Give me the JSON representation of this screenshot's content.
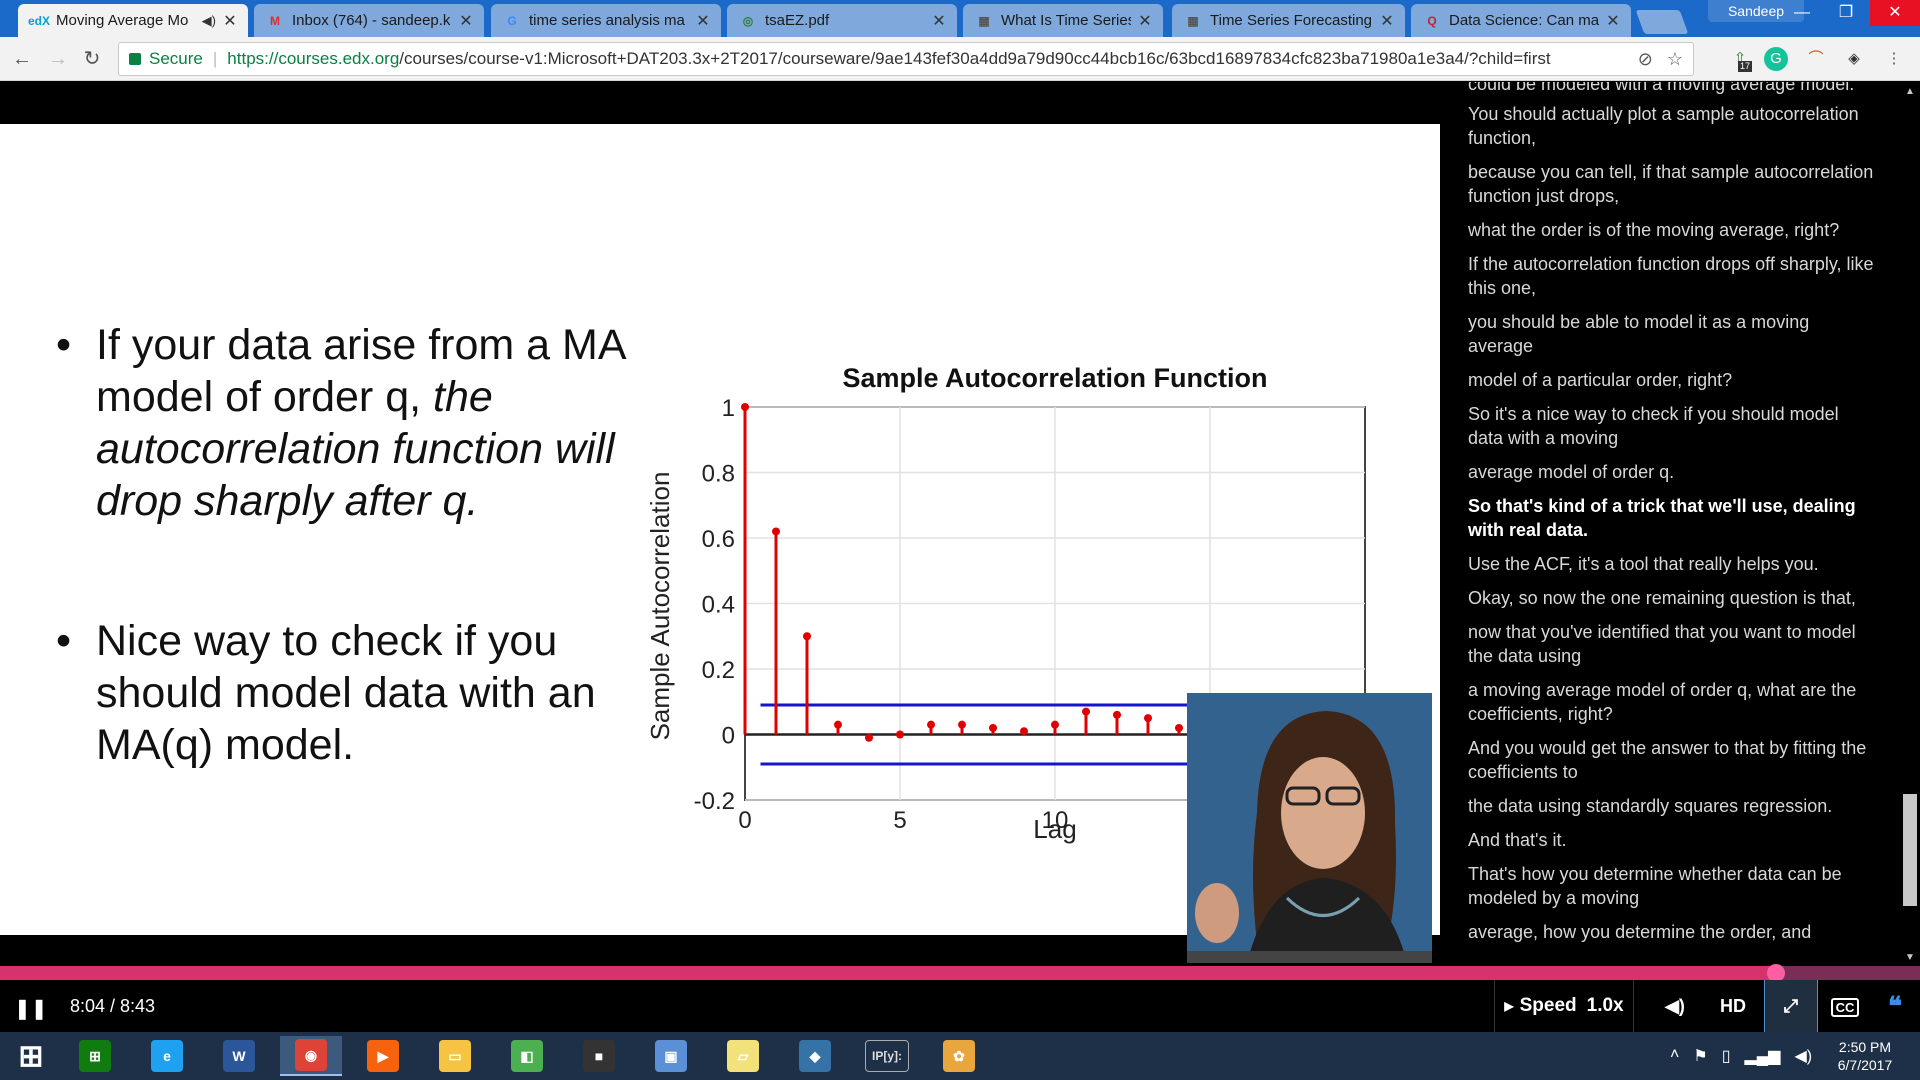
{
  "browser": {
    "tabs": [
      {
        "title": "Moving Average Mo",
        "favicon": "edx-icon",
        "favicon_text": "edX",
        "favicon_color": "#02a0e0",
        "audio": true,
        "active": true
      },
      {
        "title": "Inbox (764) - sandeep.k",
        "favicon": "gmail-icon",
        "favicon_text": "M",
        "favicon_color": "#d93025",
        "active": false
      },
      {
        "title": "time series analysis ma",
        "favicon": "google-icon",
        "favicon_text": "G",
        "favicon_color": "#4285f4",
        "active": false
      },
      {
        "title": "tsaEZ.pdf",
        "favicon": "pdf-icon",
        "favicon_text": "◎",
        "favicon_color": "#2e7d32",
        "active": false
      },
      {
        "title": "What Is Time Series For",
        "favicon": "document-icon",
        "favicon_text": "▦",
        "favicon_color": "#555555",
        "active": false
      },
      {
        "title": "Time Series Forecasting",
        "favicon": "document-icon",
        "favicon_text": "▦",
        "favicon_color": "#555555",
        "active": false
      },
      {
        "title": "Data Science: Can mach",
        "favicon": "quora-icon",
        "favicon_text": "Q",
        "favicon_color": "#b92b27",
        "active": false
      }
    ],
    "profile_name": "Sandeep",
    "security_label": "Secure",
    "url_host": "https://courses.edx.org",
    "url_path": "/courses/course-v1:Microsoft+DAT203.3x+2T2017/courseware/9ae143fef30a4dd9a79d90cc44bcb16c/63bcd16897834cfc823ba71980a1e3a4/?child=first",
    "extension_badge": "17"
  },
  "slide": {
    "bullets": [
      {
        "normal": "If your data arise from a MA model of order q, ",
        "italic": "the autocorrelation function will drop sharply after q."
      },
      {
        "normal": "Nice way to check if you should model data with an MA(q) model.",
        "italic": ""
      }
    ]
  },
  "chart_data": {
    "type": "stem",
    "title": "Sample Autocorrelation Function",
    "xlabel": "Lag",
    "ylabel": "Sample Autocorrelation",
    "xlim": [
      0,
      20
    ],
    "ylim": [
      -0.2,
      1
    ],
    "x_ticks": [
      0,
      5,
      10
    ],
    "y_ticks": [
      -0.2,
      0,
      0.2,
      0.4,
      0.6,
      0.8,
      1
    ],
    "y_tick_labels": [
      "-0.2",
      "0",
      "0.2",
      "0.4",
      "0.6",
      "0.8",
      "1"
    ],
    "grid": true,
    "stem_color": "#e00000",
    "bound_color": "#1515cc",
    "lags": [
      0,
      1,
      2,
      3,
      4,
      5,
      6,
      7,
      8,
      9,
      10,
      11,
      12,
      13,
      14
    ],
    "values": [
      1.0,
      0.62,
      0.3,
      0.03,
      -0.01,
      0.0,
      0.03,
      0.03,
      0.02,
      0.01,
      0.03,
      0.07,
      0.06,
      0.05,
      0.02
    ],
    "confidence_bounds": [
      0.09,
      -0.09
    ]
  },
  "transcript": {
    "lines": [
      {
        "text": "could be modeled with a moving average model.",
        "current": false
      },
      {
        "text": "You should actually plot a sample autocorrelation function,",
        "current": false
      },
      {
        "text": "because you can tell, if that sample autocorrelation function just drops,",
        "current": false
      },
      {
        "text": "what the order is of the moving average, right?",
        "current": false
      },
      {
        "text": "If the autocorrelation function drops off sharply, like this one,",
        "current": false
      },
      {
        "text": "you should be able to model it as a moving average",
        "current": false
      },
      {
        "text": "model of a particular order, right?",
        "current": false
      },
      {
        "text": "So it's a nice way to check if you should model data with a moving",
        "current": false
      },
      {
        "text": "average model of order q.",
        "current": false
      },
      {
        "text": "So that's kind of a trick that we'll use, dealing with real data.",
        "current": true
      },
      {
        "text": "Use the ACF, it's a tool that really helps you.",
        "current": false
      },
      {
        "text": "Okay, so now the one remaining question is that,",
        "current": false
      },
      {
        "text": "now that you've identified that you want to model the data using",
        "current": false
      },
      {
        "text": "a moving average model of order q, what are the coefficients, right?",
        "current": false
      },
      {
        "text": "And you would get the answer to that by fitting the coefficients to",
        "current": false
      },
      {
        "text": "the data using standardly squares regression.",
        "current": false
      },
      {
        "text": "And that's it.",
        "current": false
      },
      {
        "text": "That's how you determine whether data can be modeled by a moving",
        "current": false
      },
      {
        "text": "average, how you determine the order, and",
        "current": false
      }
    ]
  },
  "player": {
    "time_display": "8:04 / 8:43",
    "progress": 0.925,
    "speed_label": "Speed",
    "speed_value": "1.0x",
    "hd_label": "HD",
    "cc_label": "CC",
    "accent_color": "#d6336e"
  },
  "taskbar": {
    "apps": [
      {
        "name": "start-button",
        "glyph": "⊞",
        "color": "#ffffff"
      },
      {
        "name": "store-icon",
        "glyph": "⊞",
        "color": "#107c10"
      },
      {
        "name": "internet-explorer-icon",
        "glyph": "e",
        "color": "#1ea1f1"
      },
      {
        "name": "word-icon",
        "glyph": "W",
        "color": "#2b579a"
      },
      {
        "name": "chrome-icon",
        "glyph": "◉",
        "color": "#db4437",
        "active": true
      },
      {
        "name": "media-player-icon",
        "glyph": "▶",
        "color": "#f7630c"
      },
      {
        "name": "file-explorer-icon",
        "glyph": "▭",
        "color": "#f6c342"
      },
      {
        "name": "security-app-icon",
        "glyph": "◧",
        "color": "#4caf50"
      },
      {
        "name": "console-window-icon",
        "glyph": "■",
        "color": "#333333"
      },
      {
        "name": "network-computer-icon",
        "glyph": "▣",
        "color": "#5b8fd6"
      },
      {
        "name": "sticky-notes-icon",
        "glyph": "▱",
        "color": "#f3e27a"
      },
      {
        "name": "python-icon",
        "glyph": "◆",
        "color": "#3572a5"
      },
      {
        "name": "ipython-icon",
        "glyph": "IP[y]:",
        "color": "#ffffff"
      },
      {
        "name": "paint-icon",
        "glyph": "✿",
        "color": "#e9a63c"
      }
    ],
    "clock_time": "2:50 PM",
    "clock_date": "6/7/2017"
  }
}
